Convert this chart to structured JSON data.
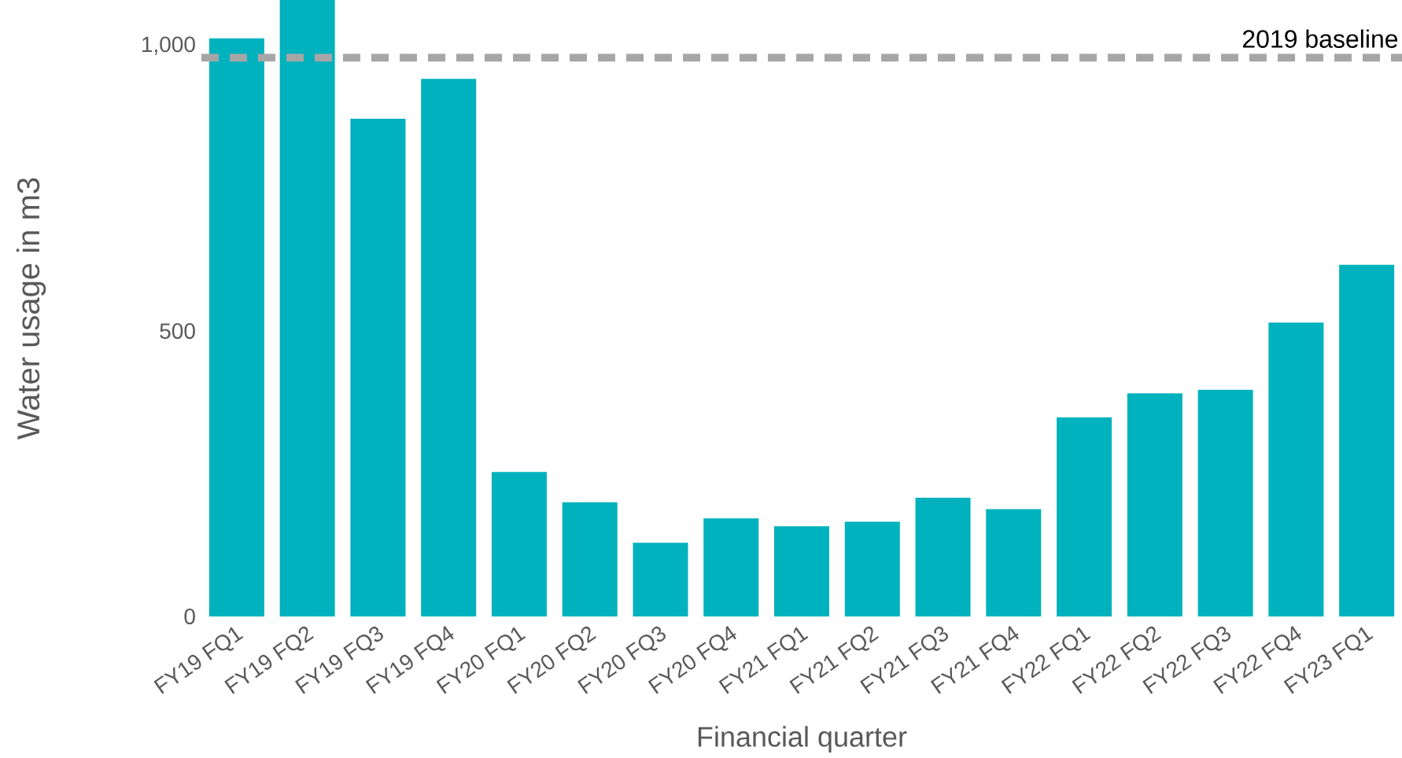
{
  "chart_data": {
    "type": "bar",
    "xlabel": "Financial quarter",
    "ylabel": "Water usage in m3",
    "categories": [
      "FY19 FQ1",
      "FY19 FQ2",
      "FY19 FQ3",
      "FY19 FQ4",
      "FY20 FQ1",
      "FY20 FQ2",
      "FY20 FQ3",
      "FY20 FQ4",
      "FY21 FQ1",
      "FY21 FQ2",
      "FY21 FQ3",
      "FY21 FQ4",
      "FY22 FQ1",
      "FY22 FQ2",
      "FY22 FQ3",
      "FY22 FQ4",
      "FY23 FQ1"
    ],
    "values": [
      1013,
      1080,
      872,
      942,
      253,
      200,
      129,
      172,
      158,
      166,
      208,
      188,
      349,
      391,
      397,
      515,
      616
    ],
    "color": "#00b2bd",
    "ylim": [
      0,
      1080
    ],
    "yticks": [
      0,
      500,
      {
        "value": 1000,
        "label": "1,000"
      }
    ],
    "ref_lines": [
      {
        "axis": "y",
        "value": 979,
        "label": "2019 baseline",
        "color": "#a6a6a6",
        "line_style": "dashed"
      }
    ]
  }
}
